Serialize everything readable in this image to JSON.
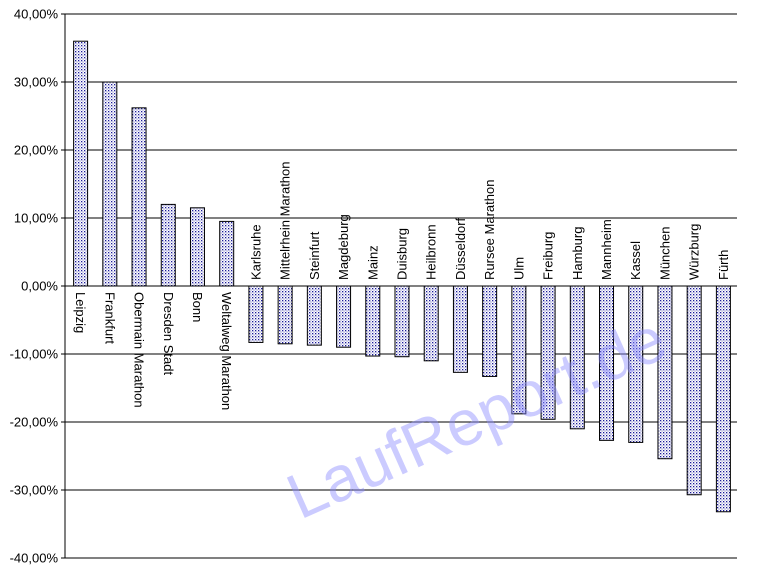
{
  "chart_data": {
    "type": "bar",
    "categories": [
      "Leipzig",
      "Frankfurt",
      "Obermain Marathon",
      "Dresden Stadt",
      "Bonn",
      "Weltalweg Marathon",
      "Karlsruhe",
      "Mittelrhein Marathon",
      "Steinfurt",
      "Magdeburg",
      "Mainz",
      "Duisburg",
      "Heilbronn",
      "Düsseldorf",
      "Rursee Marathon",
      "Ulm",
      "Freiburg",
      "Hamburg",
      "Mannheim",
      "Kassel",
      "München",
      "Würzburg",
      "Fürth"
    ],
    "values": [
      36.0,
      30.0,
      26.2,
      12.0,
      11.5,
      9.5,
      -8.3,
      -8.5,
      -8.7,
      -9.0,
      -10.3,
      -10.4,
      -11.0,
      -12.7,
      -13.3,
      -18.8,
      -19.6,
      -21.0,
      -22.7,
      -23.0,
      -25.4,
      -30.7,
      -33.2
    ],
    "title": "",
    "xlabel": "",
    "ylabel": "",
    "ylim": [
      -40,
      40
    ],
    "yticks": [
      "-40,00%",
      "-30,00%",
      "-20,00%",
      "-10,00%",
      "0,00%",
      "10,00%",
      "20,00%",
      "30,00%",
      "40,00%"
    ],
    "grid": true,
    "legend": "none",
    "bar_fill": "#ffffff",
    "bar_dots": "#1a1a99",
    "bar_stroke": "#000000"
  },
  "watermark": "LaufReport.de",
  "colors": {
    "grid": "#000000",
    "watermark": "#8c8cff"
  }
}
